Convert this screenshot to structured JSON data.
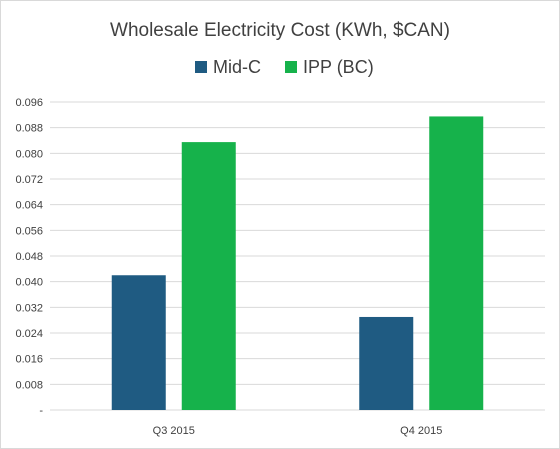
{
  "chart_data": {
    "type": "bar",
    "title": "Wholesale Electricity Cost (KWh, $CAN)",
    "categories": [
      "Q3 2015",
      "Q4 2015"
    ],
    "series": [
      {
        "name": "Mid-C",
        "color": "#1f5b82",
        "values": [
          0.042,
          0.029
        ]
      },
      {
        "name": "IPP (BC)",
        "color": "#16b24b",
        "values": [
          0.0835,
          0.0915
        ]
      }
    ],
    "ylim": [
      0,
      0.096
    ],
    "yticks": [
      "-",
      "0.008",
      "0.016",
      "0.024",
      "0.032",
      "0.040",
      "0.048",
      "0.056",
      "0.064",
      "0.072",
      "0.080",
      "0.088",
      "0.096"
    ],
    "grid": true,
    "legend_position": "top"
  }
}
